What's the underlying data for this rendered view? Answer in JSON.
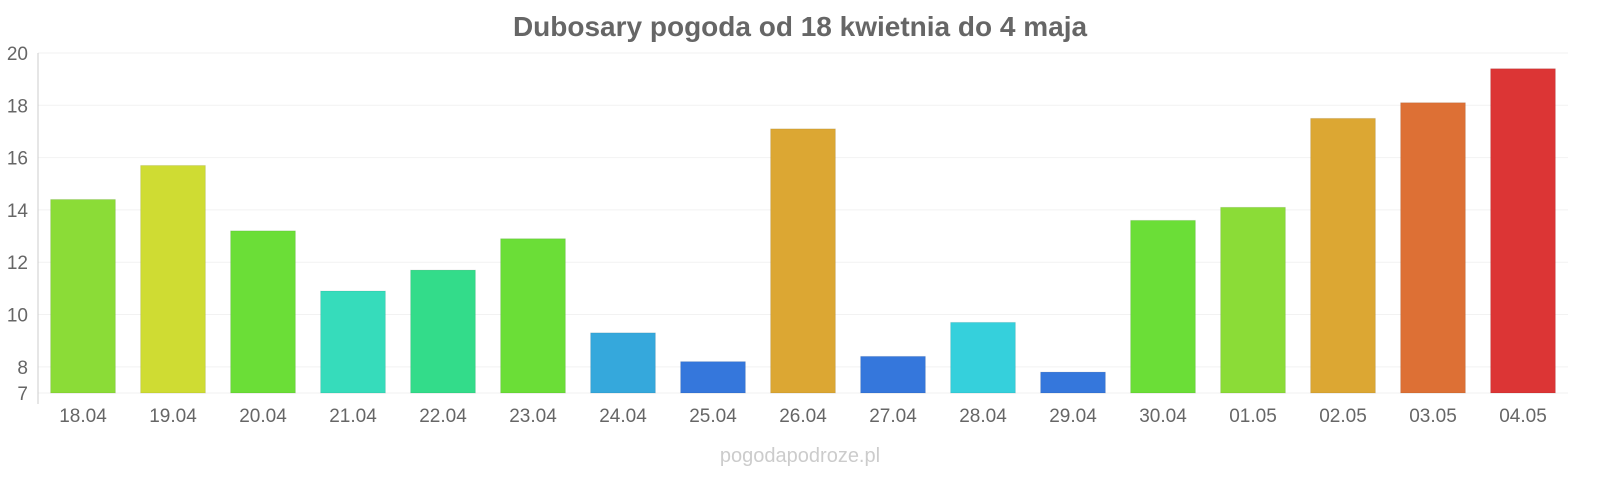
{
  "chart_data": {
    "type": "bar",
    "title": "Dubosary pogoda od 18 kwietnia do 4 maja",
    "categories": [
      "18.04",
      "19.04",
      "20.04",
      "21.04",
      "22.04",
      "23.04",
      "24.04",
      "25.04",
      "26.04",
      "27.04",
      "28.04",
      "29.04",
      "30.04",
      "01.05",
      "02.05",
      "03.05",
      "04.05"
    ],
    "values": [
      14.4,
      15.7,
      13.2,
      10.9,
      11.7,
      12.9,
      9.3,
      8.2,
      17.1,
      8.4,
      9.7,
      7.8,
      13.6,
      14.1,
      17.5,
      18.1,
      19.4
    ],
    "colors": [
      "#8bdc37",
      "#cfdc33",
      "#6bde37",
      "#36dcbb",
      "#33dc8a",
      "#6bde37",
      "#35a8dc",
      "#3577dc",
      "#dca733",
      "#3577dc",
      "#35d0dc",
      "#3577dc",
      "#6bde37",
      "#8bdc37",
      "#dca733",
      "#dd7035",
      "#dc3535"
    ],
    "yticks": [
      7,
      8,
      10,
      12,
      14,
      16,
      18,
      20
    ],
    "ylim": [
      7,
      20
    ],
    "grid": true,
    "xlabel": "",
    "ylabel": ""
  },
  "watermark": "pogodapodroze.pl"
}
